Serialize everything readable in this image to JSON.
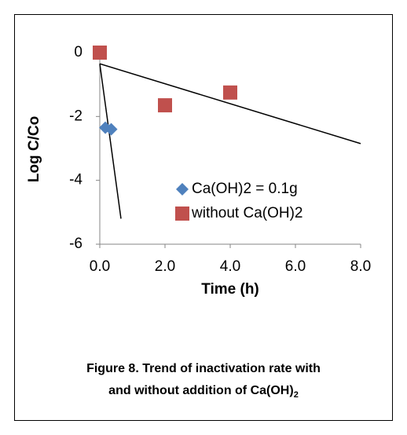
{
  "chart_data": {
    "type": "scatter",
    "x_label": "Time (h)",
    "y_label": "Log C/Co",
    "xlim": [
      0,
      8
    ],
    "ylim": [
      -6,
      0
    ],
    "xticks": [
      {
        "value": 0,
        "label": "0.0"
      },
      {
        "value": 2,
        "label": "2.0"
      },
      {
        "value": 4,
        "label": "4.0"
      },
      {
        "value": 6,
        "label": "6.0"
      },
      {
        "value": 8,
        "label": "8.0"
      }
    ],
    "yticks": [
      0,
      -2,
      -4,
      -6
    ],
    "series": [
      {
        "name": "Ca(OH)2 = 0.1g",
        "color": "#4f81bd",
        "marker": "diamond",
        "x": [
          0.17,
          0.35
        ],
        "values": [
          -2.35,
          -2.4
        ]
      },
      {
        "name": "without Ca(OH)2",
        "color": "#c0504d",
        "marker": "square",
        "x": [
          0,
          2,
          4
        ],
        "values": [
          0,
          -1.65,
          -1.25
        ]
      }
    ],
    "trendlines": [
      {
        "color": "#000000",
        "x": [
          0,
          0.65
        ],
        "values": [
          -0.35,
          -5.2
        ]
      },
      {
        "color": "#000000",
        "x": [
          0,
          8
        ],
        "values": [
          -0.35,
          -2.85
        ]
      }
    ],
    "caption": {
      "line1": "Figure 8. Trend of inactivation rate with",
      "line2": "and without addition of Ca(OH)",
      "subscript": "2"
    }
  }
}
